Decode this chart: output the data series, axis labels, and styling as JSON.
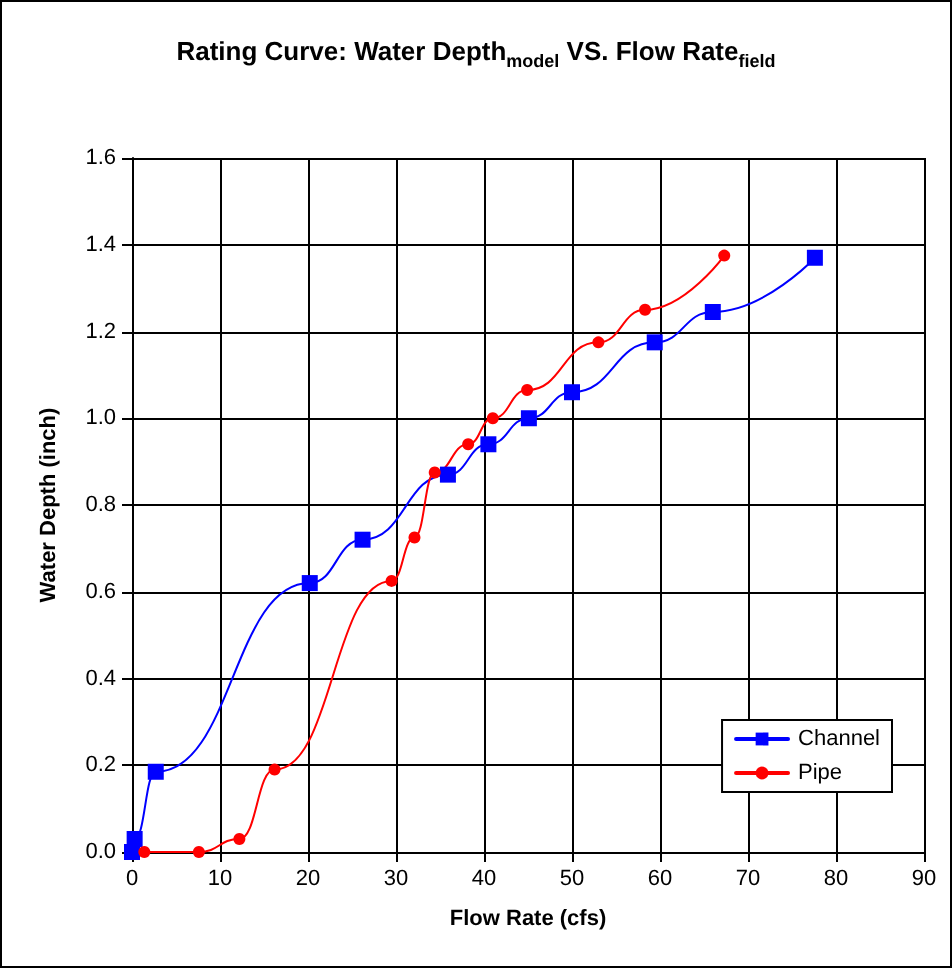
{
  "chart_data": {
    "type": "line",
    "title": "Rating Curve: Water Depth$_{model}$ VS. Flow Rate$_{field}$",
    "xlabel": "Flow Rate (cfs)",
    "ylabel": "Water Depth (inch)",
    "xlim": [
      0,
      90
    ],
    "xticks": [
      0,
      10,
      20,
      30,
      40,
      50,
      60,
      70,
      80,
      90
    ],
    "ylim": [
      0,
      1.6
    ],
    "yticks": [
      {
        "value": 0,
        "label": "0.0"
      },
      0.2,
      0.4,
      0.6,
      0.8,
      {
        "value": 1,
        "label": "1.0"
      },
      1.2,
      1.4,
      1.6
    ],
    "grid": true,
    "legend": "bottom right",
    "line_style": "solid",
    "series": [
      {
        "name": "Channel",
        "color": "#0000ff",
        "marker": "square",
        "x": [
          0,
          0.3,
          2.7,
          20.2,
          26.2,
          35.9,
          40.5,
          45.1,
          50.0,
          59.4,
          66.0,
          77.6
        ],
        "values": [
          0,
          0.03,
          0.185,
          0.62,
          0.72,
          0.87,
          0.94,
          1.0,
          1.06,
          1.175,
          1.245,
          1.37
        ]
      },
      {
        "name": "Pipe",
        "color": "#ff0000",
        "marker": "circle",
        "x": [
          1.4,
          7.6,
          12.2,
          16.2,
          29.5,
          32.1,
          34.4,
          38.2,
          41.0,
          44.9,
          53.0,
          58.3,
          67.3
        ],
        "values": [
          0,
          0,
          0.03,
          0.19,
          0.625,
          0.725,
          0.875,
          0.94,
          1.0,
          1.065,
          1.175,
          1.25,
          1.375
        ]
      }
    ]
  }
}
